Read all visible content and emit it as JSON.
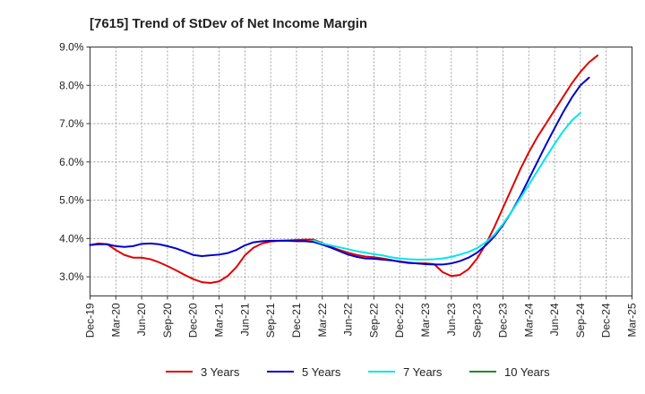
{
  "chart_data": {
    "type": "line",
    "title": "[7615]  Trend of StDev of Net Income Margin",
    "xlabel": "",
    "ylabel": "",
    "ylim": [
      2.5,
      9.0
    ],
    "y_ticks": [
      3.0,
      4.0,
      5.0,
      6.0,
      7.0,
      8.0,
      9.0
    ],
    "y_tick_labels": [
      "3.0%",
      "4.0%",
      "5.0%",
      "6.0%",
      "7.0%",
      "8.0%",
      "9.0%"
    ],
    "x_tick_labels": [
      "Dec-19",
      "Mar-20",
      "Jun-20",
      "Sep-20",
      "Dec-20",
      "Mar-21",
      "Jun-21",
      "Sep-21",
      "Dec-21",
      "Mar-22",
      "Jun-22",
      "Sep-22",
      "Dec-22",
      "Mar-23",
      "Jun-23",
      "Sep-23",
      "Dec-23",
      "Mar-24",
      "Jun-24",
      "Sep-24",
      "Dec-24",
      "Mar-25"
    ],
    "grid": true,
    "legend_position": "bottom",
    "series": [
      {
        "name": "3 Years",
        "color": "#e00000",
        "points": [
          [
            0,
            3.83
          ],
          [
            1,
            3.87
          ],
          [
            2,
            3.85
          ],
          [
            3,
            3.7
          ],
          [
            4,
            3.57
          ],
          [
            5,
            3.5
          ],
          [
            6,
            3.5
          ],
          [
            7,
            3.46
          ],
          [
            8,
            3.38
          ],
          [
            9,
            3.28
          ],
          [
            10,
            3.17
          ],
          [
            11,
            3.05
          ],
          [
            12,
            2.94
          ],
          [
            13,
            2.86
          ],
          [
            14,
            2.84
          ],
          [
            15,
            2.88
          ],
          [
            16,
            3.02
          ],
          [
            17,
            3.25
          ],
          [
            18,
            3.56
          ],
          [
            19,
            3.76
          ],
          [
            20,
            3.87
          ],
          [
            21,
            3.92
          ],
          [
            22,
            3.94
          ],
          [
            23,
            3.95
          ],
          [
            24,
            3.96
          ],
          [
            25,
            3.97
          ],
          [
            26,
            3.97
          ],
          [
            27,
            3.88
          ],
          [
            28,
            3.78
          ],
          [
            29,
            3.7
          ],
          [
            30,
            3.63
          ],
          [
            31,
            3.57
          ],
          [
            32,
            3.53
          ],
          [
            33,
            3.51
          ],
          [
            34,
            3.48
          ],
          [
            35,
            3.44
          ],
          [
            36,
            3.39
          ],
          [
            37,
            3.36
          ],
          [
            38,
            3.35
          ],
          [
            39,
            3.35
          ],
          [
            40,
            3.33
          ],
          [
            41,
            3.12
          ],
          [
            42,
            3.02
          ],
          [
            43,
            3.05
          ],
          [
            44,
            3.2
          ],
          [
            45,
            3.48
          ],
          [
            46,
            3.85
          ],
          [
            47,
            4.3
          ],
          [
            48,
            4.8
          ],
          [
            49,
            5.3
          ],
          [
            50,
            5.8
          ],
          [
            51,
            6.25
          ],
          [
            52,
            6.65
          ],
          [
            53,
            7.0
          ],
          [
            54,
            7.35
          ],
          [
            55,
            7.7
          ],
          [
            56,
            8.05
          ],
          [
            57,
            8.35
          ],
          [
            58,
            8.6
          ],
          [
            59,
            8.78
          ]
        ]
      },
      {
        "name": "5 Years",
        "color": "#0000cc",
        "points": [
          [
            0,
            3.83
          ],
          [
            1,
            3.85
          ],
          [
            2,
            3.85
          ],
          [
            3,
            3.8
          ],
          [
            4,
            3.78
          ],
          [
            5,
            3.8
          ],
          [
            6,
            3.86
          ],
          [
            7,
            3.87
          ],
          [
            8,
            3.85
          ],
          [
            9,
            3.8
          ],
          [
            10,
            3.74
          ],
          [
            11,
            3.66
          ],
          [
            12,
            3.57
          ],
          [
            13,
            3.54
          ],
          [
            14,
            3.56
          ],
          [
            15,
            3.58
          ],
          [
            16,
            3.62
          ],
          [
            17,
            3.7
          ],
          [
            18,
            3.82
          ],
          [
            19,
            3.9
          ],
          [
            20,
            3.93
          ],
          [
            21,
            3.94
          ],
          [
            22,
            3.94
          ],
          [
            23,
            3.94
          ],
          [
            24,
            3.93
          ],
          [
            25,
            3.93
          ],
          [
            26,
            3.91
          ],
          [
            27,
            3.84
          ],
          [
            28,
            3.76
          ],
          [
            29,
            3.67
          ],
          [
            30,
            3.58
          ],
          [
            31,
            3.52
          ],
          [
            32,
            3.48
          ],
          [
            33,
            3.47
          ],
          [
            34,
            3.45
          ],
          [
            35,
            3.43
          ],
          [
            36,
            3.4
          ],
          [
            37,
            3.37
          ],
          [
            38,
            3.35
          ],
          [
            39,
            3.33
          ],
          [
            40,
            3.32
          ],
          [
            41,
            3.32
          ],
          [
            42,
            3.35
          ],
          [
            43,
            3.41
          ],
          [
            44,
            3.5
          ],
          [
            45,
            3.63
          ],
          [
            46,
            3.82
          ],
          [
            47,
            4.05
          ],
          [
            48,
            4.35
          ],
          [
            49,
            4.7
          ],
          [
            50,
            5.1
          ],
          [
            51,
            5.55
          ],
          [
            52,
            6.0
          ],
          [
            53,
            6.45
          ],
          [
            54,
            6.88
          ],
          [
            55,
            7.3
          ],
          [
            56,
            7.68
          ],
          [
            57,
            8.0
          ],
          [
            58,
            8.2
          ]
        ]
      },
      {
        "name": "7 Years",
        "color": "#00e5ee",
        "points": [
          [
            26,
            3.95
          ],
          [
            27,
            3.87
          ],
          [
            28,
            3.82
          ],
          [
            29,
            3.77
          ],
          [
            30,
            3.72
          ],
          [
            31,
            3.67
          ],
          [
            32,
            3.63
          ],
          [
            33,
            3.59
          ],
          [
            34,
            3.56
          ],
          [
            35,
            3.51
          ],
          [
            36,
            3.48
          ],
          [
            37,
            3.46
          ],
          [
            38,
            3.45
          ],
          [
            39,
            3.45
          ],
          [
            40,
            3.46
          ],
          [
            41,
            3.48
          ],
          [
            42,
            3.52
          ],
          [
            43,
            3.58
          ],
          [
            44,
            3.65
          ],
          [
            45,
            3.75
          ],
          [
            46,
            3.9
          ],
          [
            47,
            4.1
          ],
          [
            48,
            4.38
          ],
          [
            49,
            4.7
          ],
          [
            50,
            5.05
          ],
          [
            51,
            5.4
          ],
          [
            52,
            5.76
          ],
          [
            53,
            6.12
          ],
          [
            54,
            6.47
          ],
          [
            55,
            6.8
          ],
          [
            56,
            7.08
          ],
          [
            57,
            7.28
          ]
        ]
      },
      {
        "name": "10 Years",
        "color": "#228b22",
        "points": []
      }
    ]
  }
}
